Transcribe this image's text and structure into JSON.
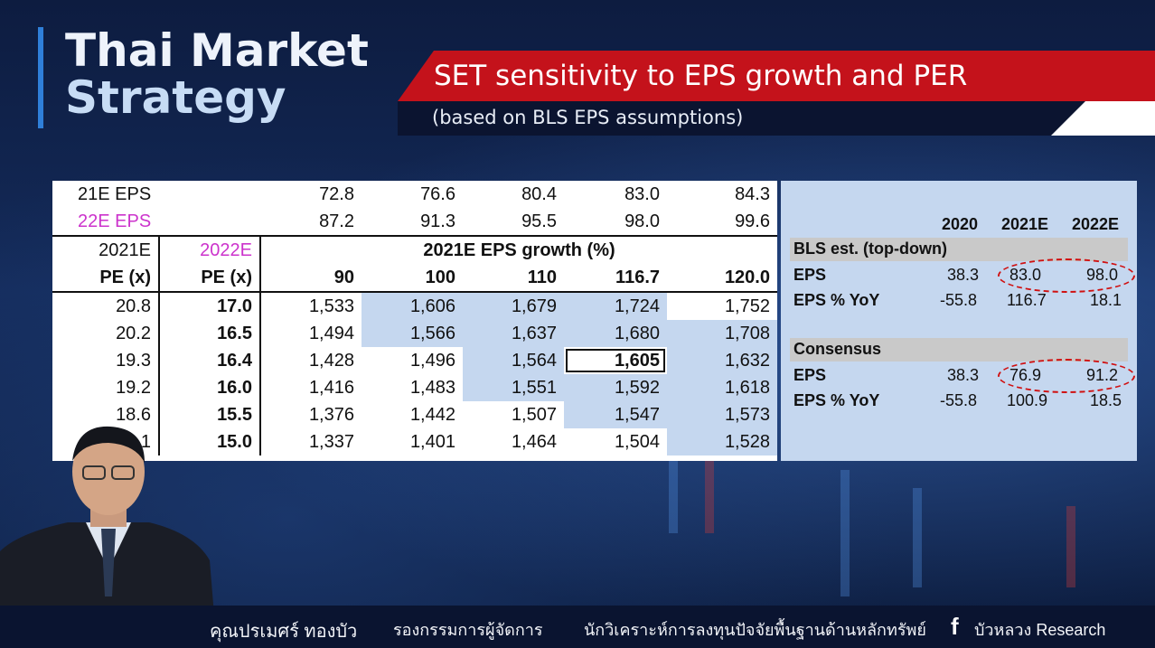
{
  "header": {
    "title_line1": "Thai Market",
    "title_line2": "Strategy",
    "banner_title": "SET sensitivity to EPS growth and PER",
    "banner_subtitle": "(based on BLS EPS assumptions)"
  },
  "sensitivity": {
    "eps21_label": "21E EPS",
    "eps21_values": [
      "72.8",
      "76.6",
      "80.4",
      "83.0",
      "84.3"
    ],
    "eps22_label": "22E EPS",
    "eps22_values": [
      "87.2",
      "91.3",
      "95.5",
      "98.0",
      "99.6"
    ],
    "col_label_2021": "2021E",
    "col_label_2022": "2022E",
    "growth_header": "2021E EPS growth (%)",
    "pe_label": "PE (x)",
    "growth_values": [
      "90",
      "100",
      "110",
      "116.7",
      "120.0"
    ],
    "rows": [
      {
        "pe21": "20.8",
        "pe22": "17.0",
        "vals": [
          "1,533",
          "1,606",
          "1,679",
          "1,724",
          "1,752"
        ]
      },
      {
        "pe21": "20.2",
        "pe22": "16.5",
        "vals": [
          "1,494",
          "1,566",
          "1,637",
          "1,680",
          "1,708"
        ]
      },
      {
        "pe21": "19.3",
        "pe22": "16.4",
        "vals": [
          "1,428",
          "1,496",
          "1,564",
          "1,605",
          "1,632"
        ]
      },
      {
        "pe21": "19.2",
        "pe22": "16.0",
        "vals": [
          "1,416",
          "1,483",
          "1,551",
          "1,592",
          "1,618"
        ]
      },
      {
        "pe21": "18.6",
        "pe22": "15.5",
        "vals": [
          "1,376",
          "1,442",
          "1,507",
          "1,547",
          "1,573"
        ]
      },
      {
        "pe21": "",
        "pe22": "15.0",
        "vals": [
          "1,337",
          "1,401",
          "1,464",
          "1,504",
          "1,528"
        ]
      }
    ],
    "pe21_last_partial": ".1"
  },
  "estimates": {
    "years": [
      "2020",
      "2021E",
      "2022E"
    ],
    "bls": {
      "section": "BLS est. (top-down)",
      "eps_label": "EPS",
      "eps": [
        "38.3",
        "83.0",
        "98.0"
      ],
      "yoy_label": "EPS % YoY",
      "yoy": [
        "-55.8",
        "116.7",
        "18.1"
      ]
    },
    "consensus": {
      "section": "Consensus",
      "eps_label": "EPS",
      "eps": [
        "38.3",
        "76.9",
        "91.2"
      ],
      "yoy_label": "EPS % YoY",
      "yoy": [
        "-55.8",
        "100.9",
        "18.5"
      ]
    }
  },
  "footer": {
    "presenter_name": "คุณปรเมศร์ ทองบัว",
    "position": "รองกรรมการผู้จัดการ",
    "role": "นักวิเคราะห์การลงทุนปัจจัยพื้นฐานด้านหลักทรัพย์",
    "facebook_icon": "facebook-icon",
    "facebook_page": "บัวหลวง Research"
  },
  "colors": {
    "accent_red": "#c4121b",
    "title_blue": "#2f7fd9",
    "highlight": "#c5d7ef",
    "magenta": "#cc33cc"
  }
}
